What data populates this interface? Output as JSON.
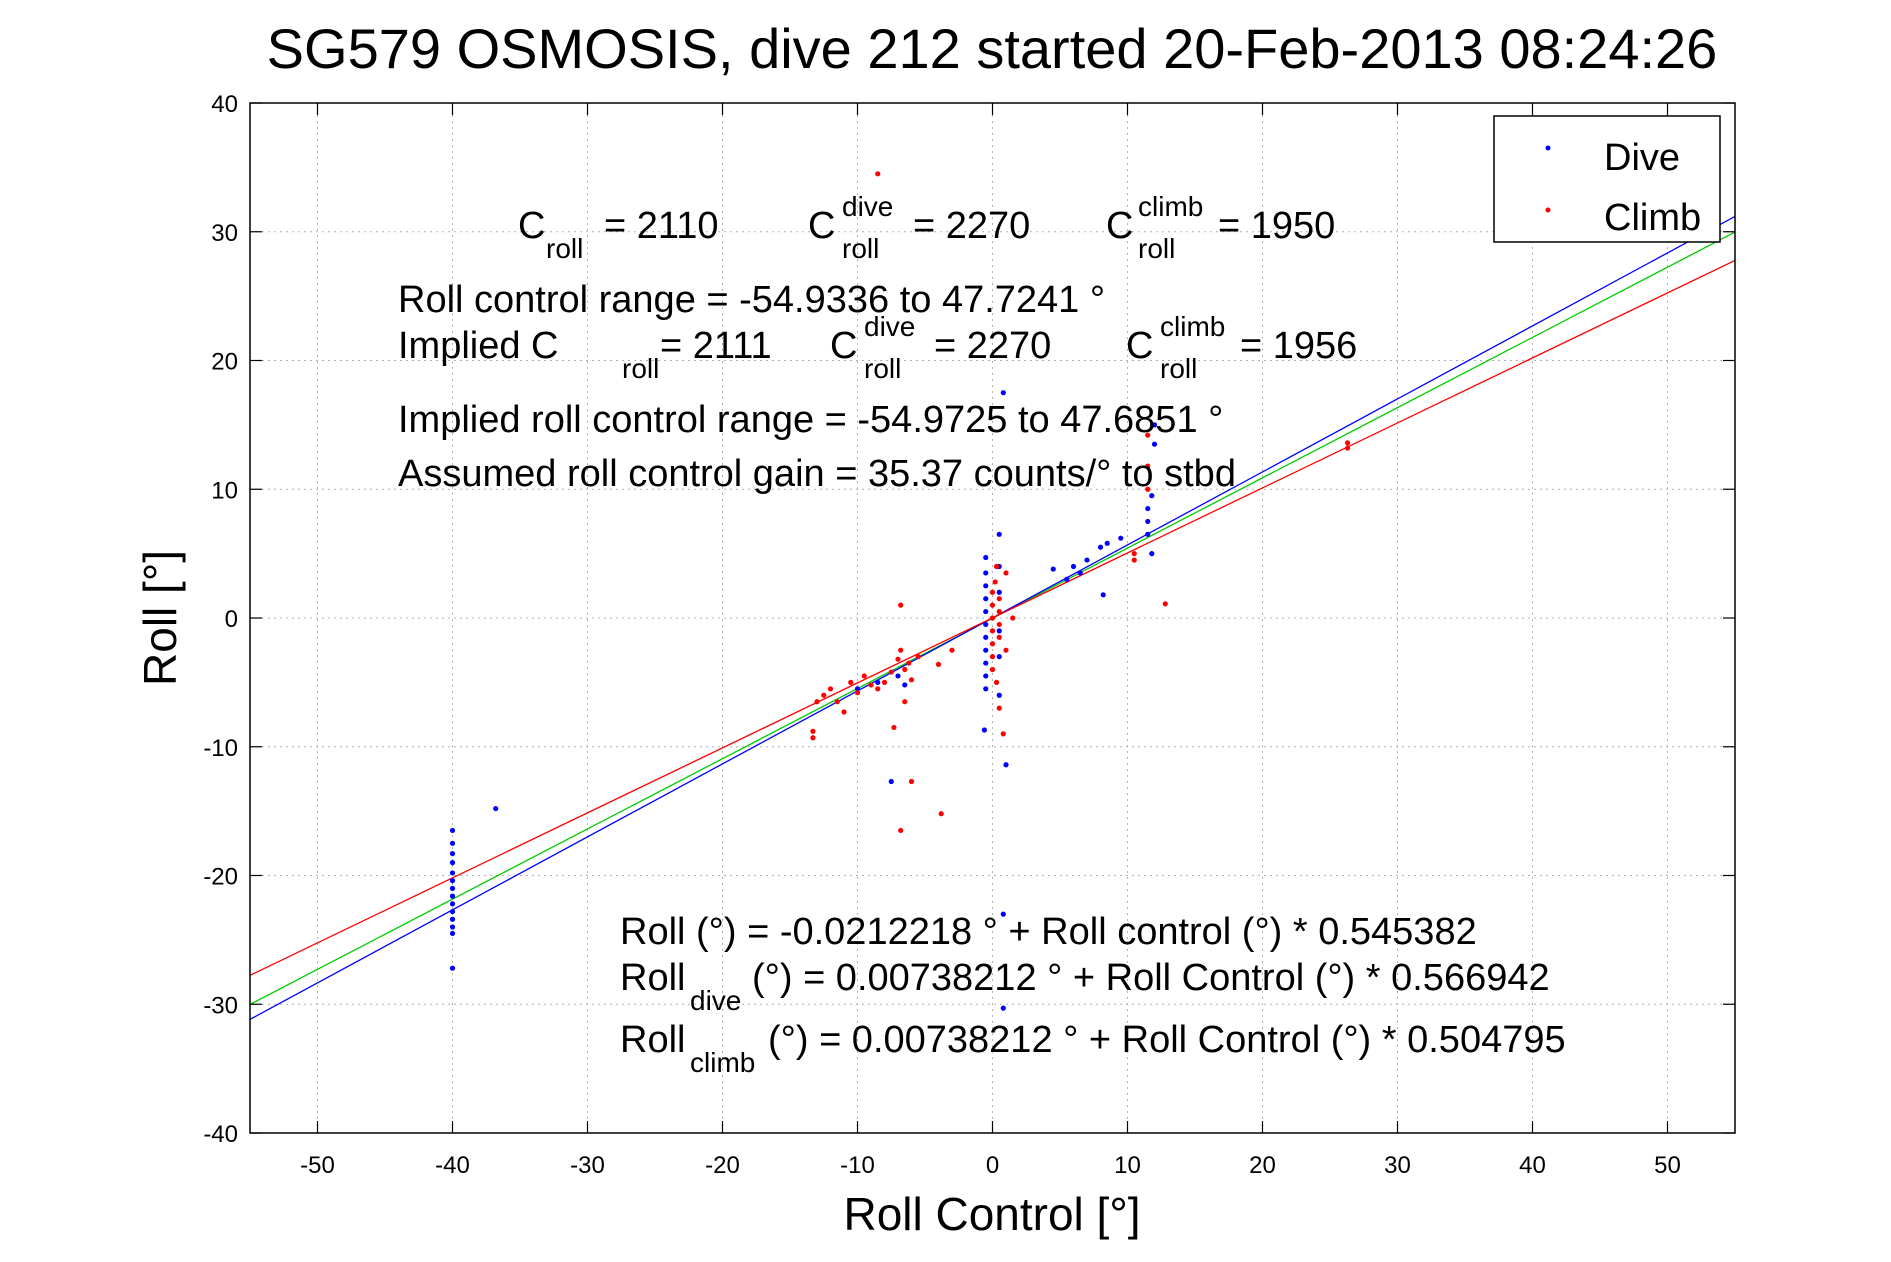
{
  "chart_data": {
    "type": "scatter",
    "title": "SG579 OSMOSIS, dive 212 started 20-Feb-2013 08:24:26",
    "xlabel": "Roll Control [°]",
    "ylabel": "Roll [°]",
    "xlim": [
      -55,
      55
    ],
    "ylim": [
      -40,
      40
    ],
    "xticks": [
      -50,
      -40,
      -30,
      -20,
      -10,
      0,
      10,
      20,
      30,
      40,
      50
    ],
    "yticks": [
      40,
      30,
      20,
      10,
      0,
      -10,
      -20,
      -30,
      -40
    ],
    "grid": true,
    "legend_position": "top-right",
    "legend": [
      {
        "name": "Dive",
        "color": "#0000ff"
      },
      {
        "name": "Climb",
        "color": "#ff0000"
      }
    ],
    "series": [
      {
        "name": "Dive",
        "color": "#0000ff",
        "points": [
          [
            -40,
            -16.5
          ],
          [
            -40,
            -17.5
          ],
          [
            -40,
            -18.3
          ],
          [
            -40,
            -19
          ],
          [
            -40,
            -19.8
          ],
          [
            -40,
            -20.4
          ],
          [
            -40,
            -21
          ],
          [
            -40,
            -21.6
          ],
          [
            -40,
            -22.2
          ],
          [
            -40,
            -22.8
          ],
          [
            -40,
            -23.4
          ],
          [
            -40,
            -24
          ],
          [
            -40,
            -24.5
          ],
          [
            -40,
            -27.2
          ],
          [
            -36.8,
            -14.8
          ],
          [
            -7.5,
            -12.7
          ],
          [
            -6.5,
            -5.2
          ],
          [
            -7,
            -4.5
          ],
          [
            -8.5,
            -5
          ],
          [
            -10,
            -5.5
          ],
          [
            -0.5,
            4.7
          ],
          [
            -0.5,
            3.5
          ],
          [
            -0.5,
            2.5
          ],
          [
            -0.5,
            1.5
          ],
          [
            -0.5,
            0.5
          ],
          [
            -0.5,
            -0.5
          ],
          [
            -0.5,
            -1.5
          ],
          [
            -0.5,
            -2.5
          ],
          [
            -0.5,
            -3.5
          ],
          [
            -0.5,
            -4.5
          ],
          [
            -0.5,
            -5.5
          ],
          [
            -0.6,
            -8.7
          ],
          [
            0.5,
            6.5
          ],
          [
            0.5,
            4
          ],
          [
            0.5,
            2
          ],
          [
            0.5,
            -1
          ],
          [
            0.5,
            -3
          ],
          [
            0.5,
            -6
          ],
          [
            0.8,
            17.5
          ],
          [
            1,
            -11.4
          ],
          [
            0.8,
            -23
          ],
          [
            0.8,
            -30.3
          ],
          [
            4.5,
            3.8
          ],
          [
            5.5,
            3
          ],
          [
            6,
            4
          ],
          [
            7,
            4.5
          ],
          [
            8,
            5.5
          ],
          [
            8.5,
            5.8
          ],
          [
            9.5,
            6.2
          ],
          [
            8.2,
            1.8
          ],
          [
            6.5,
            3.5
          ],
          [
            11.5,
            6.5
          ],
          [
            11.5,
            7.5
          ],
          [
            11.5,
            8.5
          ],
          [
            11.8,
            9.5
          ],
          [
            11.8,
            5
          ],
          [
            12,
            13.5
          ],
          [
            12,
            15
          ]
        ]
      },
      {
        "name": "Climb",
        "color": "#ff0000",
        "points": [
          [
            -13.3,
            -9.3
          ],
          [
            -13.3,
            -8.8
          ],
          [
            -13,
            -6.5
          ],
          [
            -12.5,
            -6
          ],
          [
            -12,
            -5.5
          ],
          [
            -11.5,
            -6.5
          ],
          [
            -11,
            -7.3
          ],
          [
            -10.5,
            -5
          ],
          [
            -10,
            -5.8
          ],
          [
            -9.5,
            -4.5
          ],
          [
            -9,
            -5.2
          ],
          [
            -8.5,
            -5.5
          ],
          [
            -8,
            -5
          ],
          [
            -7.5,
            -4.2
          ],
          [
            -7.3,
            -8.5
          ],
          [
            -7,
            -3.2
          ],
          [
            -6.8,
            -2.5
          ],
          [
            -6.8,
            1
          ],
          [
            -6.5,
            -4
          ],
          [
            -6.5,
            -6.5
          ],
          [
            -6.2,
            -3.5
          ],
          [
            -6,
            -4.8
          ],
          [
            -6,
            -12.7
          ],
          [
            -6.8,
            -16.5
          ],
          [
            -5.5,
            -3
          ],
          [
            -3.8,
            -15.2
          ],
          [
            -3,
            -2.5
          ],
          [
            -4,
            -3.6
          ],
          [
            -8.5,
            34.5
          ],
          [
            0,
            0
          ],
          [
            0,
            1
          ],
          [
            0,
            -1
          ],
          [
            0,
            2
          ],
          [
            0,
            -2
          ],
          [
            0,
            -3
          ],
          [
            0,
            -4
          ],
          [
            0.5,
            0.5
          ],
          [
            0.5,
            -0.5
          ],
          [
            0.5,
            1.5
          ],
          [
            0.5,
            -1.5
          ],
          [
            0.3,
            4
          ],
          [
            0.3,
            -5
          ],
          [
            0.5,
            -7
          ],
          [
            0.8,
            -9
          ],
          [
            1,
            3.5
          ],
          [
            1,
            -2.5
          ],
          [
            1.5,
            0
          ],
          [
            0.2,
            2.8
          ],
          [
            10.5,
            5
          ],
          [
            10.5,
            4.5
          ],
          [
            11.5,
            14.2
          ],
          [
            11.5,
            11.8
          ],
          [
            11.5,
            10
          ],
          [
            12.8,
            1.1
          ],
          [
            26.3,
            13.2
          ],
          [
            26.3,
            13.6
          ]
        ]
      }
    ],
    "fit_lines": [
      {
        "name": "Roll",
        "color": "#00cc00",
        "intercept": -0.0212218,
        "slope": 0.545382
      },
      {
        "name": "Roll_dive",
        "color": "#0000ff",
        "intercept": 0.00738212,
        "slope": 0.566942
      },
      {
        "name": "Roll_climb",
        "color": "#ff0000",
        "intercept": 0.00738212,
        "slope": 0.504795
      }
    ]
  },
  "annotations": {
    "c_roll_base": "C",
    "c_roll_sub": "roll",
    "c_roll_val": "= 2110",
    "c_dive_base": "C",
    "c_dive_sup": "dive",
    "c_dive_sub": "roll",
    "c_dive_val": "= 2270",
    "c_climb_base": "C",
    "c_climb_sup": "climb",
    "c_climb_sub": "roll",
    "c_climb_val": "= 1950",
    "range_text": "Roll control range = -54.9336 to 47.7241 °",
    "implied_prefix": "Implied C",
    "implied_sub": "roll",
    "implied_val": "= 2111",
    "implied_dive_base": "C",
    "implied_dive_sup": "dive",
    "implied_dive_sub": "roll",
    "implied_dive_val": "= 2270",
    "implied_climb_base": "C",
    "implied_climb_sup": "climb",
    "implied_climb_sub": "roll",
    "implied_climb_val": "= 1956",
    "implied_range_text": "Implied roll control range = -54.9725 to 47.6851 °",
    "gain_text": "Assumed roll control gain = 35.37 counts/° to stbd",
    "eq1_text": "Roll (°) = -0.0212218 ° + Roll control (°) * 0.545382",
    "eq2_base": "Roll",
    "eq2_sub": "dive",
    "eq2_rest": " (°) = 0.00738212 ° + Roll Control (°) * 0.566942",
    "eq3_base": "Roll",
    "eq3_sub": "climb",
    "eq3_rest": " (°) = 0.00738212 ° + Roll Control (°) * 0.504795"
  }
}
